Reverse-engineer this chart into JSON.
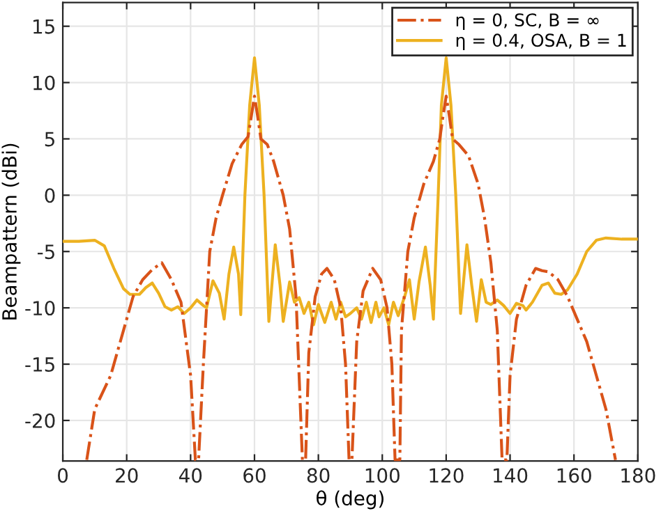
{
  "chart_data": {
    "type": "line",
    "xlabel": "θ (deg)",
    "ylabel": "Beampattern (dBi)",
    "xlim": [
      0,
      180
    ],
    "ylim": [
      -23.6,
      17.1
    ],
    "xticks": [
      0,
      20,
      40,
      60,
      80,
      100,
      120,
      140,
      160,
      180
    ],
    "yticks": [
      -20,
      -15,
      -10,
      -5,
      0,
      5,
      10,
      15
    ],
    "grid": true,
    "legend": "top right",
    "series": [
      {
        "name": "η = 0, SC, B = ∞",
        "color": "#d95319",
        "line_style": "dashdot",
        "x": [
          7.5,
          10,
          15,
          20,
          22,
          25,
          28,
          31,
          34,
          37,
          40,
          41.5,
          42.5,
          44,
          46,
          48,
          50,
          53,
          56,
          58,
          59,
          60,
          61,
          62,
          64,
          66,
          69,
          71,
          73,
          75,
          76,
          77,
          79,
          81,
          82.7,
          85,
          87,
          88.5,
          89.6,
          90.5,
          92,
          94,
          97,
          99.5,
          101.5,
          103,
          104,
          105.5,
          106,
          108,
          110,
          113,
          116,
          118,
          119,
          120,
          121,
          122,
          124,
          127,
          130,
          132,
          134,
          136,
          137.5,
          139,
          140,
          142,
          145,
          148,
          150,
          152,
          155,
          158,
          161,
          164,
          167,
          170,
          172,
          173
        ],
        "values": [
          -23.5,
          -19,
          -16,
          -11,
          -9,
          -7.5,
          -6.6,
          -6.0,
          -7.5,
          -9.5,
          -16,
          -23.5,
          -23.5,
          -15,
          -5,
          -2,
          0,
          2.8,
          4.5,
          5.2,
          7,
          8.8,
          7,
          5,
          4.5,
          3,
          0,
          -3,
          -9,
          -23.5,
          -23.5,
          -14,
          -9,
          -7,
          -6.5,
          -7.5,
          -10,
          -15,
          -23.5,
          -23.5,
          -13,
          -8.5,
          -6.5,
          -7.5,
          -10,
          -15,
          -23.5,
          -23.5,
          -12,
          -5,
          -2,
          1,
          3,
          5,
          7,
          8.8,
          7,
          5,
          4.5,
          3.5,
          1,
          -2,
          -6,
          -12,
          -23.5,
          -23.5,
          -16,
          -11,
          -8,
          -6.5,
          -6.7,
          -6.8,
          -7.5,
          -9,
          -11,
          -13,
          -16,
          -19,
          -22,
          -23.5
        ]
      },
      {
        "name": "η = 0.4, OSA, B = 1",
        "color": "#edb120",
        "line_style": "solid",
        "x": [
          0,
          5,
          10,
          13,
          16,
          19,
          21,
          24,
          26,
          28,
          30,
          32,
          34,
          36,
          38,
          40,
          42,
          44,
          45,
          47,
          49,
          50.5,
          52,
          53.5,
          55,
          55.7,
          57,
          58.5,
          60,
          61.5,
          63,
          64.5,
          66.5,
          68,
          69,
          71,
          72.5,
          74,
          75.5,
          77,
          78.5,
          80,
          81,
          82,
          84,
          85.5,
          87,
          88.5,
          90,
          92,
          93.5,
          95,
          96.5,
          98,
          99,
          100.5,
          102,
          103.5,
          105,
          107,
          108.5,
          110,
          111.5,
          113.5,
          115,
          116,
          117.5,
          118.5,
          120,
          121.5,
          123,
          124.5,
          126.5,
          128,
          129.5,
          131,
          132.5,
          134,
          136,
          138,
          140,
          142,
          144,
          145,
          147,
          150,
          152,
          154,
          156,
          158,
          161,
          164,
          167,
          170,
          175,
          180
        ],
        "values": [
          -4.1,
          -4.1,
          -4.0,
          -4.5,
          -6.5,
          -8.3,
          -8.8,
          -8.8,
          -8.2,
          -7.8,
          -8.7,
          -9.9,
          -10.2,
          -9.9,
          -10.5,
          -10.0,
          -9.3,
          -9.8,
          -10,
          -7.6,
          -8.7,
          -11,
          -7,
          -4.6,
          -7,
          -10.6,
          0,
          8,
          12.2,
          8,
          0,
          -11.2,
          -4.4,
          -8,
          -11.2,
          -7.7,
          -9.5,
          -9.1,
          -10.5,
          -9.5,
          -11.5,
          -9.7,
          -10.5,
          -11.3,
          -9.5,
          -11,
          -9.5,
          -10.8,
          -10.5,
          -10,
          -11,
          -9.5,
          -11.3,
          -9.5,
          -10.8,
          -10,
          -11.5,
          -9.5,
          -10.7,
          -9,
          -7.5,
          -11,
          -7.7,
          -4.6,
          -8,
          -11,
          0,
          8,
          12.2,
          8,
          0,
          -10.5,
          -4.4,
          -8,
          -11.2,
          -7.5,
          -9.5,
          -9.7,
          -9.3,
          -9.8,
          -10.5,
          -9.6,
          -9.8,
          -10.2,
          -9.5,
          -8,
          -7.8,
          -8.7,
          -8.8,
          -8.4,
          -7,
          -5,
          -4.0,
          -3.8,
          -3.9,
          -3.9
        ]
      }
    ]
  }
}
